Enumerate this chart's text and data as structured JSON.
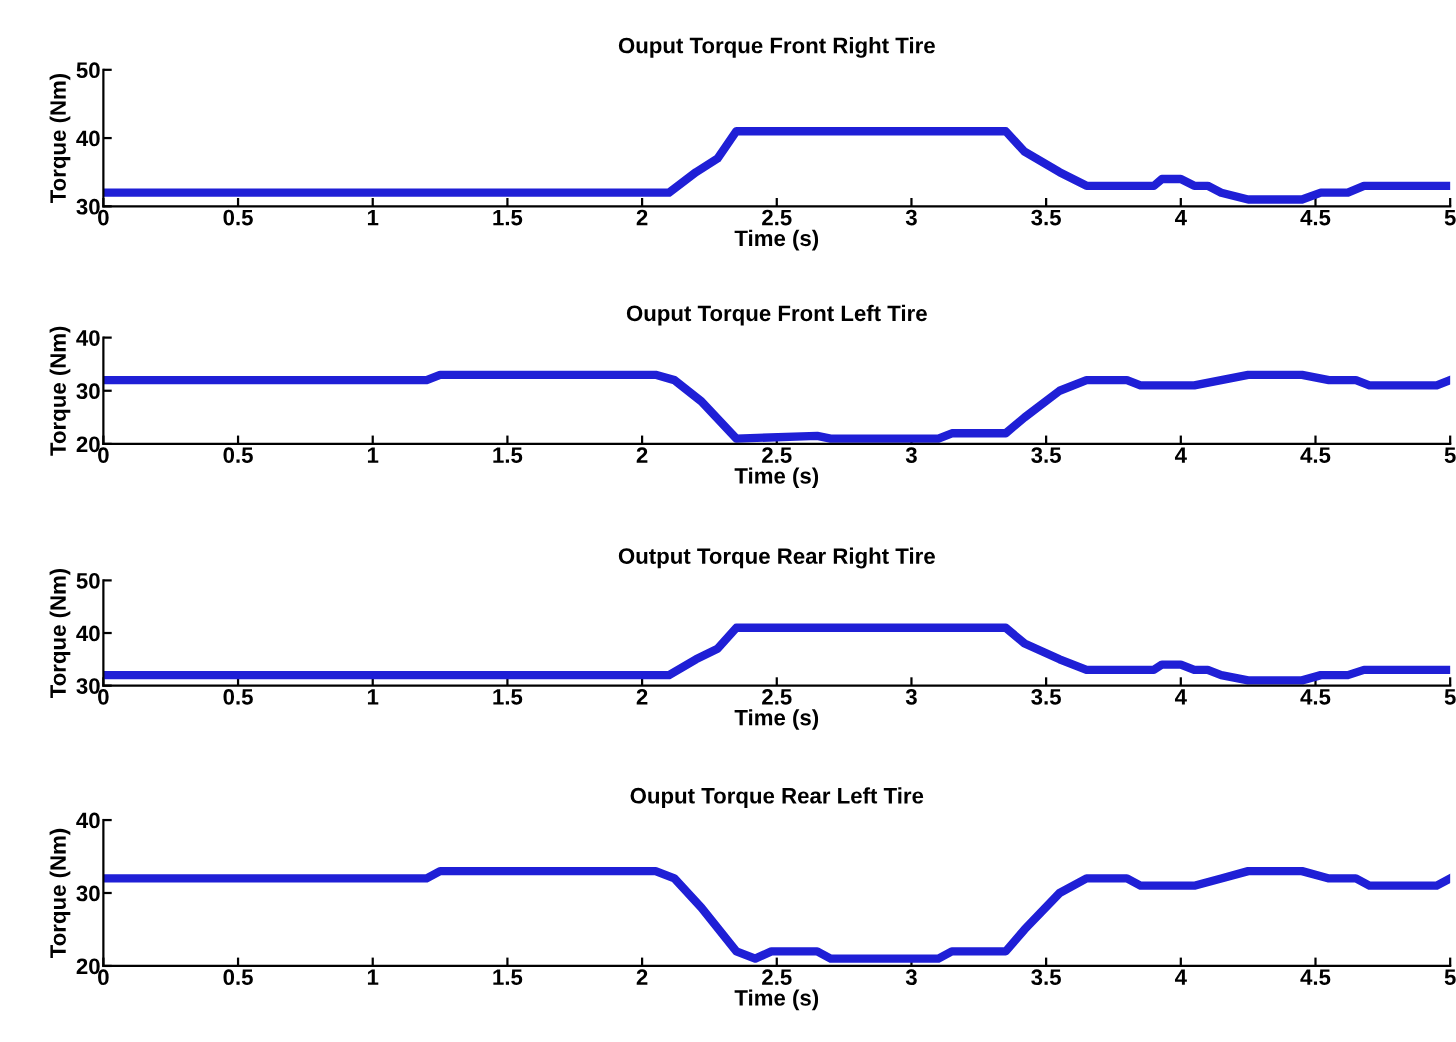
{
  "chart_data": [
    {
      "type": "line",
      "title": "Ouput Torque Front Right Tire",
      "xlabel": "Time (s)",
      "ylabel": "Torque (Nm)",
      "xlim": [
        0,
        5
      ],
      "xticks": [
        0,
        0.5,
        1,
        1.5,
        2,
        2.5,
        3,
        3.5,
        4,
        4.5,
        5
      ],
      "ylim": [
        30,
        50
      ],
      "yticks": [
        30,
        40,
        50
      ],
      "grid": false,
      "series": [
        {
          "color": "#1f1fd6",
          "x": [
            0,
            2.1,
            2.2,
            2.28,
            2.35,
            3.35,
            3.42,
            3.55,
            3.65,
            3.9,
            3.93,
            4.0,
            4.05,
            4.1,
            4.15,
            4.25,
            4.45,
            4.52,
            4.62,
            4.68,
            5
          ],
          "values": [
            32,
            32,
            35,
            37,
            41,
            41,
            38,
            35,
            33,
            33,
            34,
            34,
            33,
            33,
            32,
            31,
            31,
            32,
            32,
            33,
            33
          ]
        }
      ]
    },
    {
      "type": "line",
      "title": "Ouput Torque Front Left Tire",
      "xlabel": "Time (s)",
      "ylabel": "Torque (Nm)",
      "xlim": [
        0,
        5
      ],
      "xticks": [
        0,
        0.5,
        1,
        1.5,
        2,
        2.5,
        3,
        3.5,
        4,
        4.5,
        5
      ],
      "ylim": [
        20,
        40
      ],
      "yticks": [
        20,
        30,
        40
      ],
      "grid": false,
      "series": [
        {
          "color": "#1f1fd6",
          "x": [
            0,
            1.2,
            1.25,
            2.05,
            2.12,
            2.22,
            2.35,
            2.65,
            2.7,
            3.1,
            3.15,
            3.35,
            3.42,
            3.55,
            3.65,
            3.8,
            3.85,
            4.05,
            4.15,
            4.25,
            4.45,
            4.55,
            4.65,
            4.7,
            4.95,
            5
          ],
          "values": [
            32,
            32,
            33,
            33,
            32,
            28,
            21,
            21.5,
            21,
            21,
            22,
            22,
            25,
            30,
            32,
            32,
            31,
            31,
            32,
            33,
            33,
            32,
            32,
            31,
            31,
            32
          ]
        }
      ]
    },
    {
      "type": "line",
      "title": "Output Torque Rear Right Tire",
      "xlabel": "Time (s)",
      "ylabel": "Torque (Nm)",
      "xlim": [
        0,
        5
      ],
      "xticks": [
        0,
        0.5,
        1,
        1.5,
        2,
        2.5,
        3,
        3.5,
        4,
        4.5,
        5
      ],
      "ylim": [
        30,
        50
      ],
      "yticks": [
        30,
        40,
        50
      ],
      "grid": false,
      "series": [
        {
          "color": "#1f1fd6",
          "x": [
            0,
            2.1,
            2.2,
            2.28,
            2.35,
            3.35,
            3.42,
            3.55,
            3.65,
            3.9,
            3.93,
            4.0,
            4.05,
            4.1,
            4.15,
            4.25,
            4.45,
            4.52,
            4.62,
            4.68,
            5
          ],
          "values": [
            32,
            32,
            35,
            37,
            41,
            41,
            38,
            35,
            33,
            33,
            34,
            34,
            33,
            33,
            32,
            31,
            31,
            32,
            32,
            33,
            33
          ]
        }
      ]
    },
    {
      "type": "line",
      "title": "Ouput Torque Rear Left Tire",
      "xlabel": "Time (s)",
      "ylabel": "Torque (Nm)",
      "xlim": [
        0,
        5
      ],
      "xticks": [
        0,
        0.5,
        1,
        1.5,
        2,
        2.5,
        3,
        3.5,
        4,
        4.5,
        5
      ],
      "ylim": [
        20,
        40
      ],
      "yticks": [
        20,
        30,
        40
      ],
      "grid": false,
      "series": [
        {
          "color": "#1f1fd6",
          "x": [
            0,
            1.2,
            1.25,
            2.05,
            2.12,
            2.22,
            2.35,
            2.42,
            2.48,
            2.65,
            2.7,
            3.1,
            3.15,
            3.35,
            3.42,
            3.55,
            3.65,
            3.8,
            3.85,
            4.05,
            4.15,
            4.25,
            4.45,
            4.55,
            4.65,
            4.7,
            4.95,
            5
          ],
          "values": [
            32,
            32,
            33,
            33,
            32,
            28,
            22,
            21,
            22,
            22,
            21,
            21,
            22,
            22,
            25,
            30,
            32,
            32,
            31,
            31,
            32,
            33,
            33,
            32,
            32,
            31,
            31,
            32
          ]
        }
      ]
    }
  ]
}
